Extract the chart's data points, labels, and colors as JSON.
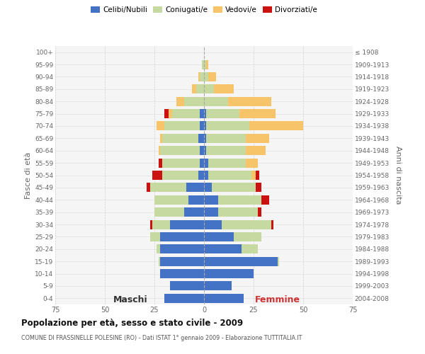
{
  "age_groups": [
    "100+",
    "95-99",
    "90-94",
    "85-89",
    "80-84",
    "75-79",
    "70-74",
    "65-69",
    "60-64",
    "55-59",
    "50-54",
    "45-49",
    "40-44",
    "35-39",
    "30-34",
    "25-29",
    "20-24",
    "15-19",
    "10-14",
    "5-9",
    "0-4"
  ],
  "birth_years": [
    "≤ 1908",
    "1909-1913",
    "1914-1918",
    "1919-1923",
    "1924-1928",
    "1929-1933",
    "1934-1938",
    "1939-1943",
    "1944-1948",
    "1949-1953",
    "1954-1958",
    "1959-1963",
    "1964-1968",
    "1969-1973",
    "1974-1978",
    "1979-1983",
    "1984-1988",
    "1989-1993",
    "1994-1998",
    "1999-2003",
    "2004-2008"
  ],
  "males_celibe": [
    0,
    0,
    0,
    0,
    0,
    2,
    2,
    3,
    2,
    2,
    3,
    9,
    8,
    10,
    17,
    22,
    22,
    22,
    22,
    17,
    20
  ],
  "males_coniugato": [
    0,
    1,
    2,
    4,
    10,
    14,
    18,
    18,
    20,
    19,
    18,
    18,
    17,
    15,
    9,
    5,
    2,
    1,
    0,
    0,
    0
  ],
  "males_vedovo": [
    0,
    0,
    1,
    2,
    4,
    2,
    4,
    1,
    1,
    0,
    0,
    0,
    0,
    0,
    0,
    0,
    0,
    0,
    0,
    0,
    0
  ],
  "males_divorziato": [
    0,
    0,
    0,
    0,
    0,
    2,
    0,
    0,
    0,
    2,
    5,
    2,
    0,
    0,
    1,
    0,
    0,
    0,
    0,
    0,
    0
  ],
  "females_nubile": [
    0,
    0,
    0,
    0,
    0,
    1,
    1,
    1,
    1,
    2,
    2,
    4,
    7,
    7,
    9,
    15,
    19,
    37,
    25,
    14,
    20
  ],
  "females_coniugata": [
    0,
    1,
    2,
    5,
    12,
    17,
    22,
    20,
    20,
    19,
    22,
    22,
    22,
    20,
    25,
    14,
    8,
    1,
    0,
    0,
    0
  ],
  "females_vedova": [
    0,
    1,
    4,
    10,
    22,
    18,
    27,
    12,
    10,
    6,
    2,
    0,
    0,
    0,
    0,
    0,
    0,
    0,
    0,
    0,
    0
  ],
  "females_divorziata": [
    0,
    0,
    0,
    0,
    0,
    0,
    0,
    0,
    0,
    0,
    2,
    3,
    4,
    2,
    1,
    0,
    0,
    0,
    0,
    0,
    0
  ],
  "color_celibe": "#4472c4",
  "color_coniugato": "#c5d9a0",
  "color_vedovo": "#f8c46a",
  "color_divorziato": "#cc1111",
  "title": "Popolazione per età, sesso e stato civile - 2009",
  "subtitle": "COMUNE DI FRASSINELLE POLESINE (RO) - Dati ISTAT 1° gennaio 2009 - Elaborazione TUTTITALIA.IT",
  "label_maschi": "Maschi",
  "label_femmine": "Femmine",
  "label_fasce": "Fasce di età",
  "label_anni": "Anni di nascita",
  "legend_labels": [
    "Celibi/Nubili",
    "Coniugati/e",
    "Vedovi/e",
    "Divorziati/e"
  ],
  "xlim": 75,
  "bg_color": "#ffffff",
  "plot_bg": "#f5f5f5",
  "grid_color": "#cccccc"
}
